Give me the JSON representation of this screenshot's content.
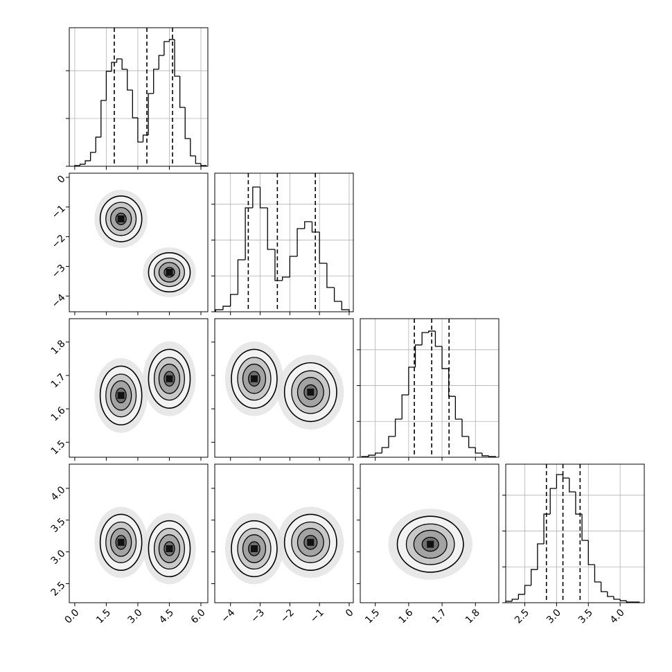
{
  "chart_data": {
    "type": "corner",
    "grid": true,
    "parameters": [
      {
        "xlim": [
          -0.26,
          6.33
        ],
        "xticks": [
          {
            "value": 0,
            "label": "0.0"
          },
          1.5,
          {
            "value": 3,
            "label": "3.0"
          },
          4.5,
          {
            "value": 6,
            "label": "6.0"
          }
        ],
        "bins": [
          0,
          0.25,
          0.5,
          0.75,
          1,
          1.25,
          1.5,
          1.75,
          2,
          2.25,
          2.5,
          2.75,
          3,
          3.25,
          3.5,
          3.75,
          4,
          4.25,
          4.5,
          4.75,
          5,
          5.25,
          5.5,
          5.75,
          6,
          6.25
        ],
        "counts": [
          6,
          17,
          46,
          116,
          244,
          551,
          795,
          870,
          899,
          812,
          638,
          406,
          203,
          261,
          609,
          812,
          928,
          1044,
          1061,
          754,
          493,
          232,
          87,
          23,
          6
        ],
        "hist_ylim": [
          0,
          1160
        ],
        "hist_yticks": [
          0,
          400,
          800
        ],
        "quantiles": [
          1.88,
          3.43,
          4.65
        ],
        "pairs": []
      },
      {
        "xlim": [
          -4.53,
          0.14
        ],
        "xticks": [
          {
            "value": -4,
            "label": "−4"
          },
          {
            "value": -3,
            "label": "−3"
          },
          {
            "value": -2,
            "label": "−2"
          },
          {
            "value": -1,
            "label": "−1"
          },
          0
        ],
        "bins": [
          -4.5,
          -4.25,
          -4,
          -3.75,
          -3.5,
          -3.25,
          -3,
          -2.75,
          -2.5,
          -2.25,
          -2,
          -1.75,
          -1.5,
          -1.25,
          -1,
          -0.75,
          -0.5,
          -0.25,
          0
        ],
        "counts": [
          17,
          46,
          145,
          435,
          870,
          1044,
          870,
          522,
          261,
          290,
          464,
          696,
          754,
          667,
          406,
          203,
          87,
          17
        ],
        "hist_ylim": [
          0,
          1160
        ],
        "hist_yticks": [
          0,
          300,
          600,
          900
        ],
        "quantiles": [
          -3.4,
          -2.42,
          -1.14
        ],
        "pairs": [
          [
            {
              "mean": [
                2.2,
                -1.4
              ],
              "sd": [
                0.45,
                0.35
              ]
            },
            {
              "mean": [
                4.5,
                -3.2
              ],
              "sd": [
                0.45,
                0.3
              ]
            }
          ]
        ]
      },
      {
        "xlim": [
          1.455,
          1.87
        ],
        "xticks": [
          1.5,
          1.6,
          1.7,
          1.8
        ],
        "bins": [
          1.46,
          1.48,
          1.5,
          1.52,
          1.54,
          1.56,
          1.58,
          1.6,
          1.62,
          1.64,
          1.66,
          1.68,
          1.7,
          1.72,
          1.74,
          1.76,
          1.78,
          1.8,
          1.82,
          1.84,
          1.86
        ],
        "counts": [
          6,
          17,
          35,
          81,
          174,
          319,
          522,
          754,
          940,
          1044,
          1056,
          928,
          742,
          510,
          319,
          174,
          81,
          35,
          12,
          6
        ],
        "hist_ylim": [
          0,
          1160
        ],
        "hist_yticks": [
          0,
          300,
          600,
          900
        ],
        "quantiles": [
          1.617,
          1.669,
          1.721
        ],
        "pairs": [
          [
            {
              "mean": [
                2.2,
                1.64
              ],
              "sd": [
                0.45,
                0.04
              ]
            },
            {
              "mean": [
                4.5,
                1.69
              ],
              "sd": [
                0.45,
                0.04
              ]
            }
          ],
          [
            {
              "mean": [
                -3.2,
                1.69
              ],
              "sd": [
                0.35,
                0.04
              ]
            },
            {
              "mean": [
                -1.3,
                1.65
              ],
              "sd": [
                0.4,
                0.04
              ]
            }
          ]
        ]
      },
      {
        "xlim": [
          2.2,
          4.38
        ],
        "xticks": [
          2.5,
          {
            "value": 3,
            "label": "3.0"
          },
          3.5,
          {
            "value": 4,
            "label": "4.0"
          }
        ],
        "bins": [
          2.2,
          2.3,
          2.4,
          2.5,
          2.6,
          2.7,
          2.8,
          2.9,
          3,
          3.1,
          3.2,
          3.3,
          3.4,
          3.5,
          3.6,
          3.7,
          3.8,
          3.9,
          4,
          4.1,
          4.2,
          4.3
        ],
        "counts": [
          12,
          29,
          70,
          145,
          278,
          493,
          742,
          957,
          1073,
          1044,
          928,
          742,
          522,
          319,
          174,
          93,
          52,
          29,
          17,
          6,
          6
        ],
        "hist_ylim": [
          0,
          1160
        ],
        "hist_yticks": [
          0,
          300,
          600,
          900
        ],
        "quantiles": [
          2.84,
          3.1,
          3.37
        ],
        "pairs": [
          [
            {
              "mean": [
                2.2,
                3.15
              ],
              "sd": [
                0.45,
                0.2
              ]
            },
            {
              "mean": [
                4.5,
                3.05
              ],
              "sd": [
                0.45,
                0.2
              ]
            }
          ],
          [
            {
              "mean": [
                -3.2,
                3.05
              ],
              "sd": [
                0.35,
                0.2
              ]
            },
            {
              "mean": [
                -1.3,
                3.15
              ],
              "sd": [
                0.4,
                0.2
              ]
            }
          ],
          [
            {
              "mean": [
                1.665,
                3.12
              ],
              "sd": [
                0.045,
                0.2
              ]
            }
          ]
        ]
      }
    ]
  }
}
